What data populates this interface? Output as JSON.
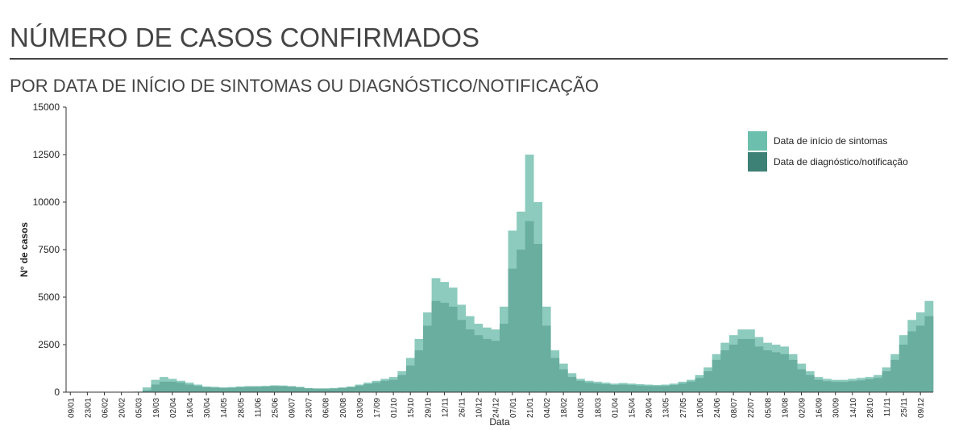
{
  "chart_data": {
    "type": "bar",
    "title": "NÚMERO DE CASOS CONFIRMADOS",
    "subtitle": "POR DATA DE INÍCIO DE SINTOMAS OU DIAGNÓSTICO/NOTIFICAÇÃO",
    "x_label": "Data",
    "y_label": "N° de casos",
    "categories": [
      "09/01",
      null,
      "23/01",
      null,
      "06/02",
      null,
      "20/02",
      null,
      "05/03",
      null,
      "19/03",
      null,
      "02/04",
      null,
      "16/04",
      null,
      "30/04",
      null,
      "14/05",
      null,
      "28/05",
      null,
      "11/06",
      null,
      "25/06",
      null,
      "09/07",
      null,
      "23/07",
      null,
      "06/08",
      null,
      "20/08",
      null,
      "03/09",
      null,
      "17/09",
      null,
      "01/10",
      null,
      "15/10",
      null,
      "29/10",
      null,
      "12/11",
      null,
      "26/11",
      null,
      "10/12",
      null,
      "24/12",
      null,
      "07/01",
      null,
      "21/01",
      null,
      "04/02",
      null,
      "18/02",
      null,
      "04/03",
      null,
      "18/03",
      null,
      "01/04",
      null,
      "15/04",
      null,
      "29/04",
      null,
      "13/05",
      null,
      "27/05",
      null,
      "10/06",
      null,
      "24/06",
      null,
      "08/07",
      null,
      "22/07",
      null,
      "05/08",
      null,
      "19/08",
      null,
      "02/09",
      null,
      "16/09",
      null,
      "30/09",
      null,
      "14/10",
      null,
      "28/10",
      null,
      "11/11",
      null,
      "25/11",
      null,
      "09/12",
      null
    ],
    "series": [
      {
        "name": "Data de início de sintomas",
        "color": "#8ccbbd",
        "values": [
          0,
          0,
          0,
          0,
          0,
          0,
          0,
          0,
          30,
          250,
          650,
          800,
          700,
          600,
          500,
          400,
          300,
          280,
          250,
          270,
          300,
          320,
          320,
          330,
          360,
          350,
          320,
          280,
          220,
          200,
          200,
          220,
          250,
          300,
          400,
          500,
          600,
          700,
          800,
          1100,
          1800,
          2800,
          4200,
          6000,
          5800,
          5500,
          4600,
          4000,
          3600,
          3400,
          3300,
          4500,
          8500,
          9500,
          12500,
          10000,
          4500,
          2200,
          1500,
          1000,
          700,
          600,
          550,
          500,
          450,
          480,
          450,
          420,
          400,
          380,
          400,
          450,
          550,
          650,
          900,
          1300,
          2000,
          2600,
          3000,
          3300,
          3300,
          2900,
          2600,
          2500,
          2400,
          2000,
          1500,
          1100,
          800,
          700,
          650,
          650,
          700,
          750,
          800,
          900,
          1300,
          2000,
          3000,
          3800,
          4200,
          4800
        ]
      },
      {
        "name": "Data de diagnóstico/notificação",
        "color": "#6aaea0",
        "values": [
          0,
          0,
          0,
          0,
          0,
          0,
          0,
          0,
          0,
          100,
          400,
          550,
          550,
          500,
          400,
          330,
          260,
          240,
          220,
          230,
          260,
          280,
          280,
          300,
          320,
          310,
          290,
          250,
          200,
          180,
          180,
          190,
          220,
          260,
          340,
          430,
          500,
          600,
          650,
          900,
          1400,
          2200,
          3500,
          4800,
          4700,
          4500,
          3800,
          3300,
          3000,
          2800,
          2700,
          3600,
          6500,
          7500,
          9000,
          7800,
          3500,
          1800,
          1200,
          800,
          600,
          500,
          450,
          420,
          380,
          400,
          380,
          350,
          330,
          320,
          330,
          380,
          450,
          550,
          750,
          1100,
          1700,
          2200,
          2500,
          2800,
          2800,
          2400,
          2200,
          2100,
          2000,
          1700,
          1200,
          900,
          650,
          580,
          540,
          540,
          580,
          620,
          680,
          750,
          1100,
          1700,
          2500,
          3200,
          3500,
          4000
        ]
      }
    ],
    "legend_colors": [
      "#6dbfad",
      "#3d8075"
    ],
    "ylim": [
      0,
      15000
    ],
    "yticks": [
      0,
      2500,
      5000,
      7500,
      10000,
      12500,
      15000
    ],
    "grid": false,
    "legend": "top-right"
  }
}
